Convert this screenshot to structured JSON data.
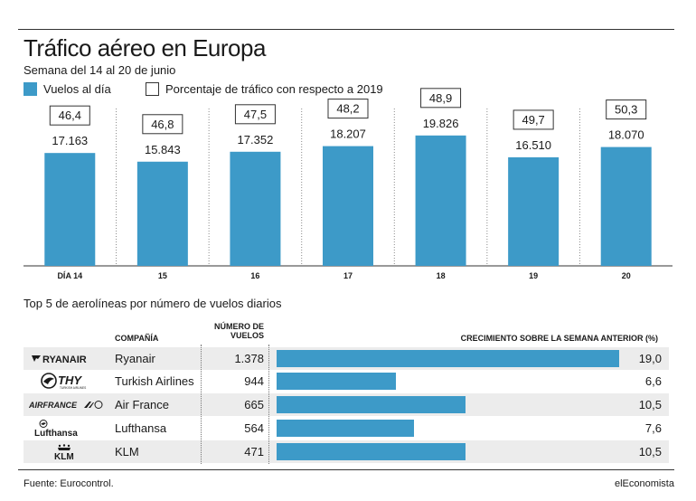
{
  "header": {
    "title": "Tráfico aéreo en Europa",
    "subtitle": "Semana del 14 al 20 de junio"
  },
  "colors": {
    "bar": "#3d9ac8",
    "text": "#1a1a1a",
    "row_shade": "#ececec"
  },
  "chart_data": [
    {
      "type": "bar",
      "title": "",
      "categories": [
        "DÍA 14",
        "15",
        "16",
        "17",
        "18",
        "19",
        "20"
      ],
      "series": [
        {
          "name": "Vuelos al día",
          "values": [
            17163,
            15843,
            17352,
            18207,
            19826,
            16510,
            18070
          ],
          "labels": [
            "17.163",
            "15.843",
            "17.352",
            "18.207",
            "19.826",
            "16.510",
            "18.070"
          ]
        },
        {
          "name": "Porcentaje de tráfico con respecto a 2019",
          "values": [
            46.4,
            46.8,
            47.5,
            48.2,
            48.9,
            49.7,
            50.3
          ],
          "labels": [
            "46,4",
            "46,8",
            "47,5",
            "48,2",
            "48,9",
            "49,7",
            "50,3"
          ]
        }
      ],
      "ylim": [
        0,
        22000
      ],
      "legend": "top-left",
      "grid": false
    },
    {
      "type": "bar",
      "title": "Top 5 de aerolíneas por número de vuelos diarios",
      "categories": [
        "Ryanair",
        "Turkish Airlines",
        "Air France",
        "Lufthansa",
        "KLM"
      ],
      "series": [
        {
          "name": "CRECIMIENTO SOBRE LA SEMANA ANTERIOR (%)",
          "values": [
            19.0,
            6.6,
            10.5,
            7.6,
            10.5
          ]
        }
      ],
      "xlim": [
        0,
        19.0
      ],
      "grid": false
    }
  ],
  "table": {
    "headers": {
      "company": "COMPAÑÍA",
      "count": "NÚMERO DE VUELOS",
      "growth": "CRECIMIENTO SOBRE LA SEMANA ANTERIOR (%)"
    },
    "rows": [
      {
        "logo": "RYANAIR",
        "logo_icon": "ryanair-harp-icon",
        "name": "Ryanair",
        "flights": "1.378",
        "growth": 19.0,
        "growth_label": "19,0"
      },
      {
        "logo": "THY",
        "logo_sub": "TURKISH AIRLINES",
        "logo_icon": "thy-crane-icon",
        "name": "Turkish Airlines",
        "flights": "944",
        "growth": 6.6,
        "growth_label": "6,6"
      },
      {
        "logo": "AIRFRANCE",
        "logo_icon": "air-france-wing-icon",
        "name": "Air France",
        "flights": "665",
        "growth": 10.5,
        "growth_label": "10,5"
      },
      {
        "logo": "Lufthansa",
        "logo_icon": "lufthansa-crane-icon",
        "name": "Lufthansa",
        "flights": "564",
        "growth": 7.6,
        "growth_label": "7,6"
      },
      {
        "logo": "KLM",
        "logo_icon": "klm-crown-icon",
        "name": "KLM",
        "flights": "471",
        "growth": 10.5,
        "growth_label": "10,5"
      }
    ]
  },
  "footer": {
    "source": "Fuente: Eurocontrol.",
    "brand": "elEconomista"
  }
}
